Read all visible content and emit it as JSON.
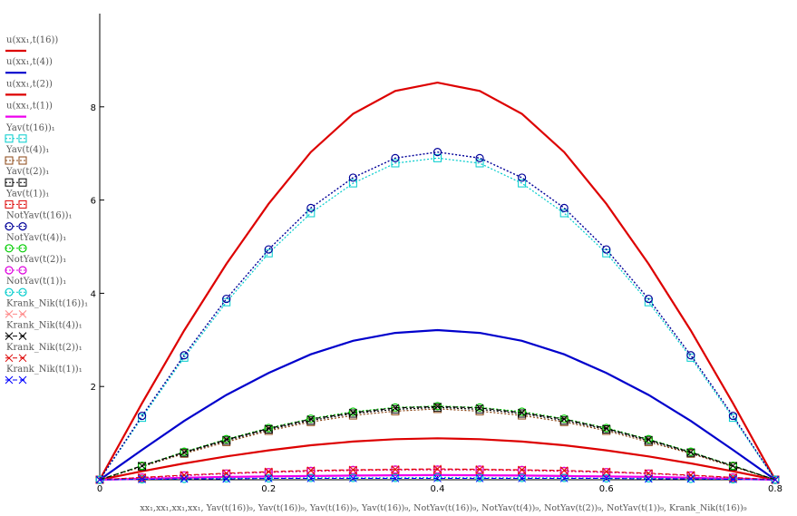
{
  "chart_data": {
    "type": "line",
    "xlabel": "xx₁,xx₁,xx₁,xx₁, Yav(t(16))₉, Yav(t(16))₉, Yav(t(16))₉, Yav(t(16))₉, NotYav(t(16))₉, NotYav(t(4))₉, NotYav(t(2))₉, NotYav(t(1))₉, Krank_Nik(t(16))₉",
    "xlim": [
      0,
      0.8
    ],
    "ylim": [
      0,
      10
    ],
    "x_ticks": [
      0,
      0.2,
      0.4,
      0.6,
      0.8
    ],
    "y_ticks": [
      2,
      4,
      6,
      8
    ],
    "x": [
      0,
      0.05,
      0.1,
      0.15,
      0.2,
      0.25,
      0.3,
      0.35,
      0.4,
      0.45,
      0.5,
      0.55,
      0.6,
      0.65,
      0.7,
      0.75,
      0.8
    ],
    "series": [
      {
        "name": "u(xx₁,t(16))",
        "color": "#dd0000",
        "style": "solid",
        "width": 2.2,
        "marker": "none",
        "values": [
          0,
          1.64,
          3.2,
          4.63,
          5.92,
          7.03,
          7.85,
          8.34,
          8.52,
          8.34,
          7.85,
          7.03,
          5.92,
          4.63,
          3.2,
          1.64,
          0
        ]
      },
      {
        "name": "u(xx₁,t(4))",
        "color": "#0000cc",
        "style": "solid",
        "width": 2.2,
        "marker": "none",
        "values": [
          0,
          0.64,
          1.26,
          1.82,
          2.29,
          2.69,
          2.98,
          3.15,
          3.21,
          3.15,
          2.98,
          2.69,
          2.29,
          1.82,
          1.26,
          0.64,
          0
        ]
      },
      {
        "name": "u(xx₁,t(2))",
        "color": "#dd0000",
        "style": "solid",
        "width": 2.2,
        "marker": "none",
        "values": [
          0,
          0.18,
          0.35,
          0.5,
          0.63,
          0.74,
          0.82,
          0.87,
          0.89,
          0.87,
          0.82,
          0.74,
          0.63,
          0.5,
          0.35,
          0.18,
          0
        ]
      },
      {
        "name": "u(xx₁,t(1))",
        "color": "#ee00ee",
        "style": "solid",
        "width": 2.2,
        "marker": "none",
        "values": [
          0,
          0.02,
          0.04,
          0.06,
          0.07,
          0.08,
          0.09,
          0.095,
          0.1,
          0.095,
          0.09,
          0.08,
          0.07,
          0.06,
          0.04,
          0.02,
          0
        ]
      },
      {
        "name": "Yav(t(16))₁",
        "color": "#00cccc",
        "style": "dotted",
        "width": 1.2,
        "marker": "square",
        "values": [
          0,
          1.33,
          2.62,
          3.81,
          4.86,
          5.72,
          6.36,
          6.79,
          6.9,
          6.79,
          6.36,
          5.72,
          4.86,
          3.81,
          2.62,
          1.33,
          0
        ]
      },
      {
        "name": "Yav(t(4))₁",
        "color": "#8b4513",
        "style": "dotted",
        "width": 1.2,
        "marker": "square",
        "values": [
          0,
          0.28,
          0.56,
          0.81,
          1.05,
          1.24,
          1.38,
          1.47,
          1.52,
          1.47,
          1.38,
          1.24,
          1.05,
          0.81,
          0.56,
          0.28,
          0
        ]
      },
      {
        "name": "Yav(t(2))₁",
        "color": "#000000",
        "style": "dotted",
        "width": 1.2,
        "marker": "square",
        "values": [
          0,
          0.29,
          0.58,
          0.84,
          1.08,
          1.27,
          1.42,
          1.51,
          1.55,
          1.51,
          1.42,
          1.27,
          1.08,
          0.84,
          0.58,
          0.29,
          0
        ]
      },
      {
        "name": "Yav(t(1))₁",
        "color": "#dd0000",
        "style": "dotted",
        "width": 1.2,
        "marker": "square",
        "values": [
          0,
          0.04,
          0.09,
          0.13,
          0.16,
          0.18,
          0.2,
          0.21,
          0.21,
          0.21,
          0.2,
          0.18,
          0.16,
          0.13,
          0.09,
          0.04,
          0
        ]
      },
      {
        "name": "NotYav(t(16))₁",
        "color": "#000099",
        "style": "dotted",
        "width": 1.4,
        "marker": "circle",
        "values": [
          0,
          1.37,
          2.67,
          3.88,
          4.94,
          5.83,
          6.48,
          6.9,
          7.03,
          6.9,
          6.48,
          5.83,
          4.94,
          3.88,
          2.67,
          1.37,
          0
        ]
      },
      {
        "name": "NotYav(t(4))₁",
        "color": "#00cc00",
        "style": "dotted",
        "width": 1.2,
        "marker": "circle",
        "values": [
          0,
          0.3,
          0.6,
          0.87,
          1.11,
          1.31,
          1.46,
          1.55,
          1.58,
          1.55,
          1.46,
          1.31,
          1.11,
          0.87,
          0.6,
          0.3,
          0
        ]
      },
      {
        "name": "NotYav(t(2))₁",
        "color": "#dd00dd",
        "style": "dotted",
        "width": 1.2,
        "marker": "circle",
        "values": [
          0,
          0.05,
          0.09,
          0.13,
          0.16,
          0.19,
          0.21,
          0.22,
          0.22,
          0.22,
          0.21,
          0.19,
          0.16,
          0.13,
          0.09,
          0.05,
          0
        ]
      },
      {
        "name": "NotYav(t(1))₁",
        "color": "#00cccc",
        "style": "dotted",
        "width": 1.2,
        "marker": "circle",
        "values": [
          0,
          0.01,
          0.02,
          0.03,
          0.03,
          0.04,
          0.04,
          0.04,
          0.05,
          0.04,
          0.04,
          0.04,
          0.03,
          0.03,
          0.02,
          0.01,
          0
        ]
      },
      {
        "name": "Krank_Nik(t(16))₁",
        "color": "#ff8888",
        "style": "dashed",
        "width": 1.0,
        "marker": "x",
        "values": [
          0,
          0.05,
          0.1,
          0.14,
          0.18,
          0.2,
          0.22,
          0.23,
          0.24,
          0.23,
          0.22,
          0.2,
          0.18,
          0.14,
          0.1,
          0.05,
          0
        ]
      },
      {
        "name": "Krank_Nik(t(4))₁",
        "color": "#000000",
        "style": "dashed",
        "width": 1.2,
        "marker": "x",
        "values": [
          0,
          0.3,
          0.59,
          0.86,
          1.1,
          1.3,
          1.44,
          1.54,
          1.57,
          1.54,
          1.44,
          1.3,
          1.1,
          0.86,
          0.59,
          0.3,
          0
        ]
      },
      {
        "name": "Krank_Nik(t(2))₁",
        "color": "#dd0000",
        "style": "dashed",
        "width": 1.0,
        "marker": "x",
        "values": [
          0,
          0.05,
          0.1,
          0.14,
          0.17,
          0.2,
          0.21,
          0.22,
          0.23,
          0.22,
          0.21,
          0.2,
          0.17,
          0.14,
          0.1,
          0.05,
          0
        ]
      },
      {
        "name": "Krank_Nik(t(1))₁",
        "color": "#0000ff",
        "style": "dashed",
        "width": 1.0,
        "marker": "x",
        "values": [
          0,
          0.01,
          0.02,
          0.02,
          0.03,
          0.03,
          0.03,
          0.03,
          0.03,
          0.03,
          0.03,
          0.03,
          0.03,
          0.02,
          0.02,
          0.01,
          0
        ]
      }
    ]
  }
}
